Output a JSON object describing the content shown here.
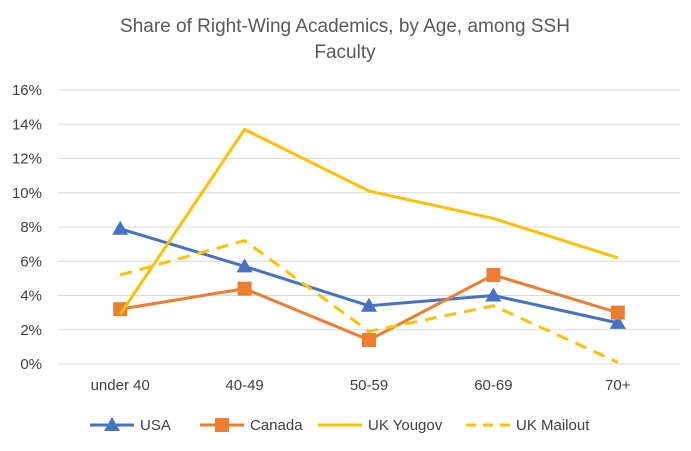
{
  "chart_data": {
    "type": "line",
    "title_lines": [
      "Share of Right-Wing Academics, by Age, among SSH",
      "Faculty"
    ],
    "categories": [
      "under 40",
      "40-49",
      "50-59",
      "60-69",
      "70+"
    ],
    "y_ticks": [
      "0%",
      "2%",
      "4%",
      "6%",
      "8%",
      "10%",
      "12%",
      "14%",
      "16%"
    ],
    "ylim": [
      0,
      16
    ],
    "grid": true,
    "legend_position": "bottom",
    "series": [
      {
        "name": "USA",
        "values": [
          7.9,
          5.7,
          3.4,
          4.0,
          2.4
        ],
        "color": "#4472C4",
        "marker": "triangle",
        "dash": false
      },
      {
        "name": "Canada",
        "values": [
          3.2,
          4.4,
          1.4,
          5.2,
          3.0
        ],
        "color": "#ED7D31",
        "marker": "square",
        "dash": false
      },
      {
        "name": "UK Yougov",
        "values": [
          2.9,
          13.7,
          10.1,
          8.5,
          6.2
        ],
        "color": "#FFC000",
        "marker": "none",
        "dash": false
      },
      {
        "name": "UK Mailout",
        "values": [
          5.2,
          7.2,
          1.9,
          3.4,
          0.1
        ],
        "color": "#FFC000",
        "marker": "none",
        "dash": true
      }
    ]
  }
}
